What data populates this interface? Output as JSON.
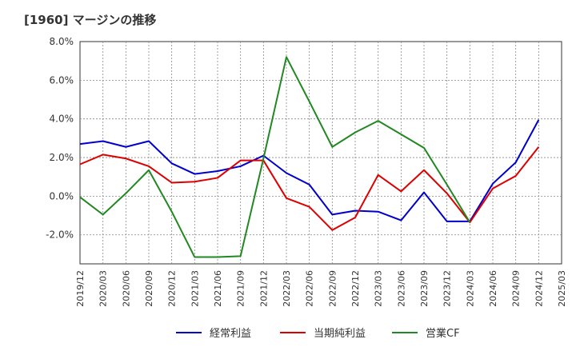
{
  "chart_data": {
    "type": "line",
    "title": "[1960]  マージンの推移",
    "xlabel": "",
    "ylabel": "",
    "x": [
      "2019/12",
      "2020/03",
      "2020/06",
      "2020/09",
      "2020/12",
      "2021/03",
      "2021/06",
      "2021/09",
      "2021/12",
      "2022/03",
      "2022/06",
      "2022/09",
      "2022/12",
      "2023/03",
      "2023/06",
      "2023/09",
      "2023/12",
      "2024/03",
      "2024/06",
      "2024/09",
      "2024/12",
      "2025/03"
    ],
    "ylim": [
      -3.5,
      8.0
    ],
    "yticks": [
      -2.0,
      0.0,
      2.0,
      4.0,
      6.0,
      8.0
    ],
    "ytick_labels": [
      "-2.0%",
      "0.0%",
      "2.0%",
      "4.0%",
      "6.0%",
      "8.0%"
    ],
    "grid": true,
    "legend_position": "bottom",
    "series": [
      {
        "name": "経常利益",
        "color": "#0000cc",
        "values": [
          2.7,
          2.85,
          2.55,
          2.85,
          1.7,
          1.15,
          1.3,
          1.55,
          2.1,
          1.2,
          0.6,
          -0.95,
          -0.75,
          -0.8,
          -1.25,
          0.2,
          -1.3,
          -1.3,
          0.65,
          1.75,
          3.95,
          null
        ]
      },
      {
        "name": "当期純利益",
        "color": "#dd0000",
        "values": [
          1.65,
          2.15,
          1.95,
          1.55,
          0.7,
          0.75,
          0.95,
          1.85,
          1.85,
          -0.1,
          -0.55,
          -1.75,
          -1.1,
          1.1,
          0.25,
          1.35,
          0.15,
          -1.35,
          0.4,
          1.05,
          2.55,
          null
        ]
      },
      {
        "name": "営業CF",
        "color": "#228822",
        "values": [
          -0.05,
          -0.95,
          0.15,
          1.35,
          -0.8,
          -3.15,
          -3.15,
          -3.1,
          1.95,
          7.2,
          4.9,
          2.55,
          3.3,
          3.9,
          3.2,
          2.5,
          0.6,
          -1.35,
          null,
          null,
          null,
          null
        ]
      }
    ]
  }
}
